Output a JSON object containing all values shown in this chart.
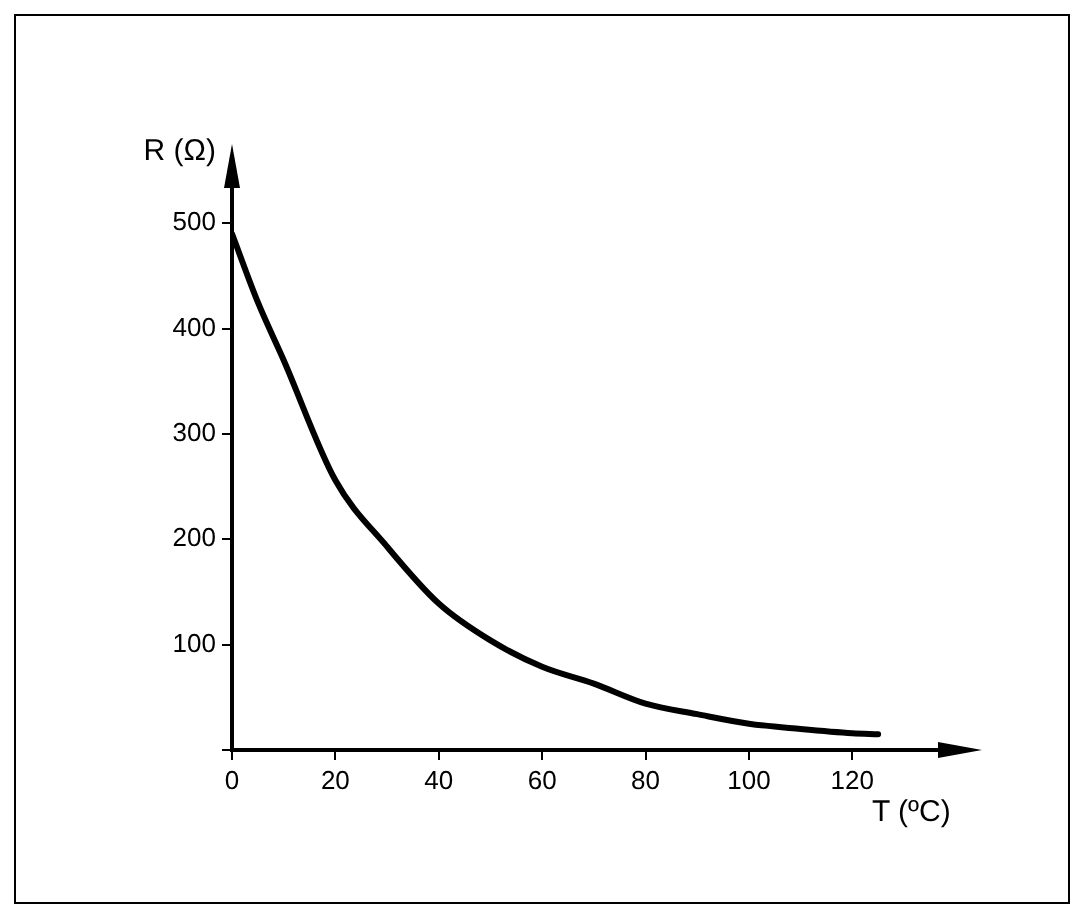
{
  "chart_data": {
    "type": "line",
    "xlabel": "T (ºC)",
    "ylabel": "R (Ω)",
    "x": [
      0,
      5,
      10,
      20,
      30,
      40,
      50,
      60,
      70,
      80,
      90,
      100,
      110,
      120,
      125
    ],
    "series": [
      {
        "color": "#000000",
        "values": [
          490,
          425,
          370,
          256,
          193,
          139,
          104,
          79,
          63,
          44,
          34,
          25,
          20,
          16,
          15
        ]
      }
    ],
    "xlim": [
      0,
      142
    ],
    "ylim": [
      0,
      560
    ],
    "xticks": [
      0,
      20,
      40,
      60,
      80,
      100,
      120
    ],
    "yticks": [
      {
        "value": 0,
        "label": null
      },
      100,
      200,
      300,
      400,
      500
    ],
    "grid": false,
    "legend": false,
    "marker": "none",
    "line_style": "solid"
  }
}
